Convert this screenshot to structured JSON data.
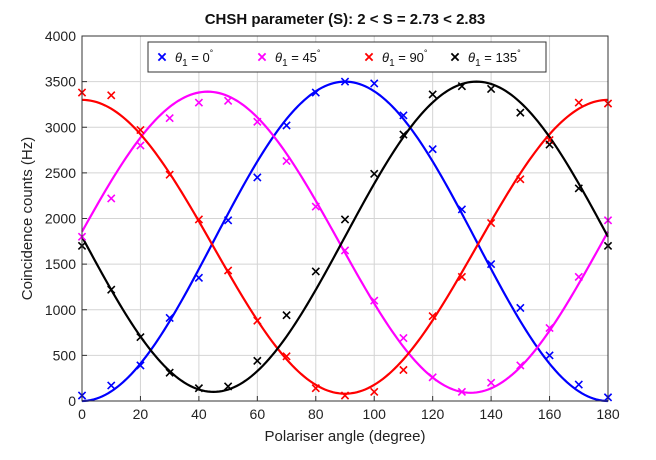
{
  "chart_data": {
    "type": "scatter",
    "title": "CHSH parameter (S): 2 < S = 2.73 < 2.83",
    "xlabel": "Polariser angle (degree)",
    "ylabel": "Coincidence counts (Hz)",
    "xlim": [
      0,
      180
    ],
    "ylim": [
      0,
      4000
    ],
    "xticks": [
      "0",
      "20",
      "40",
      "60",
      "80",
      "100",
      "120",
      "140",
      "160",
      "180"
    ],
    "yticks": [
      "0",
      "500",
      "1000",
      "1500",
      "2000",
      "2500",
      "3000",
      "3500",
      "4000"
    ],
    "grid": true,
    "legend_position": "top",
    "series": [
      {
        "name": "θ1 = 0°",
        "legend_main": "θ",
        "legend_sub": "1",
        "legend_rest": " = 0",
        "color": "#0000ff",
        "marker": "x",
        "fit": {
          "mean": 1750,
          "amp": 1750,
          "phase_deg": 90
        },
        "x": [
          0,
          10,
          20,
          30,
          40,
          50,
          60,
          70,
          80,
          90,
          100,
          110,
          120,
          130,
          140,
          150,
          160,
          170,
          180
        ],
        "y": [
          60,
          170,
          390,
          910,
          1350,
          1980,
          2450,
          3020,
          3380,
          3500,
          3480,
          3130,
          2760,
          2100,
          1500,
          1020,
          500,
          180,
          40
        ]
      },
      {
        "name": "θ1 = 45°",
        "legend_main": "θ",
        "legend_sub": "1",
        "legend_rest": " = 45",
        "color": "#ff00ff",
        "marker": "x",
        "fit": {
          "mean": 1740,
          "amp": 1650,
          "phase_deg": 43
        },
        "x": [
          0,
          10,
          20,
          30,
          40,
          50,
          60,
          70,
          80,
          90,
          100,
          110,
          120,
          130,
          140,
          150,
          160,
          170,
          180
        ],
        "y": [
          1800,
          2220,
          2800,
          3100,
          3270,
          3290,
          3060,
          2630,
          2130,
          1650,
          1100,
          690,
          260,
          100,
          200,
          390,
          800,
          1360,
          1980
        ]
      },
      {
        "name": "θ1 = 90°",
        "legend_main": "θ",
        "legend_sub": "1",
        "legend_rest": " = 90",
        "color": "#ff0000",
        "marker": "x",
        "fit": {
          "mean": 1690,
          "amp": 1610,
          "phase_deg": 0
        },
        "x": [
          0,
          10,
          20,
          30,
          40,
          50,
          60,
          70,
          80,
          90,
          100,
          110,
          120,
          130,
          140,
          150,
          160,
          170,
          180
        ],
        "y": [
          3380,
          3350,
          2970,
          2480,
          1990,
          1430,
          880,
          490,
          140,
          60,
          100,
          340,
          930,
          1360,
          1950,
          2430,
          2860,
          3270,
          3260
        ]
      },
      {
        "name": "θ1 = 135°",
        "legend_main": "θ",
        "legend_sub": "1",
        "legend_rest": " = 135",
        "color": "#000000",
        "marker": "x",
        "fit": {
          "mean": 1800,
          "amp": 1700,
          "phase_deg": -45
        },
        "x": [
          0,
          10,
          20,
          30,
          40,
          50,
          60,
          70,
          80,
          90,
          100,
          110,
          120,
          130,
          140,
          150,
          160,
          170,
          180
        ],
        "y": [
          1700,
          1220,
          700,
          310,
          140,
          160,
          440,
          940,
          1420,
          1990,
          2490,
          2920,
          3360,
          3450,
          3420,
          3160,
          2810,
          2330,
          1700
        ]
      }
    ]
  }
}
